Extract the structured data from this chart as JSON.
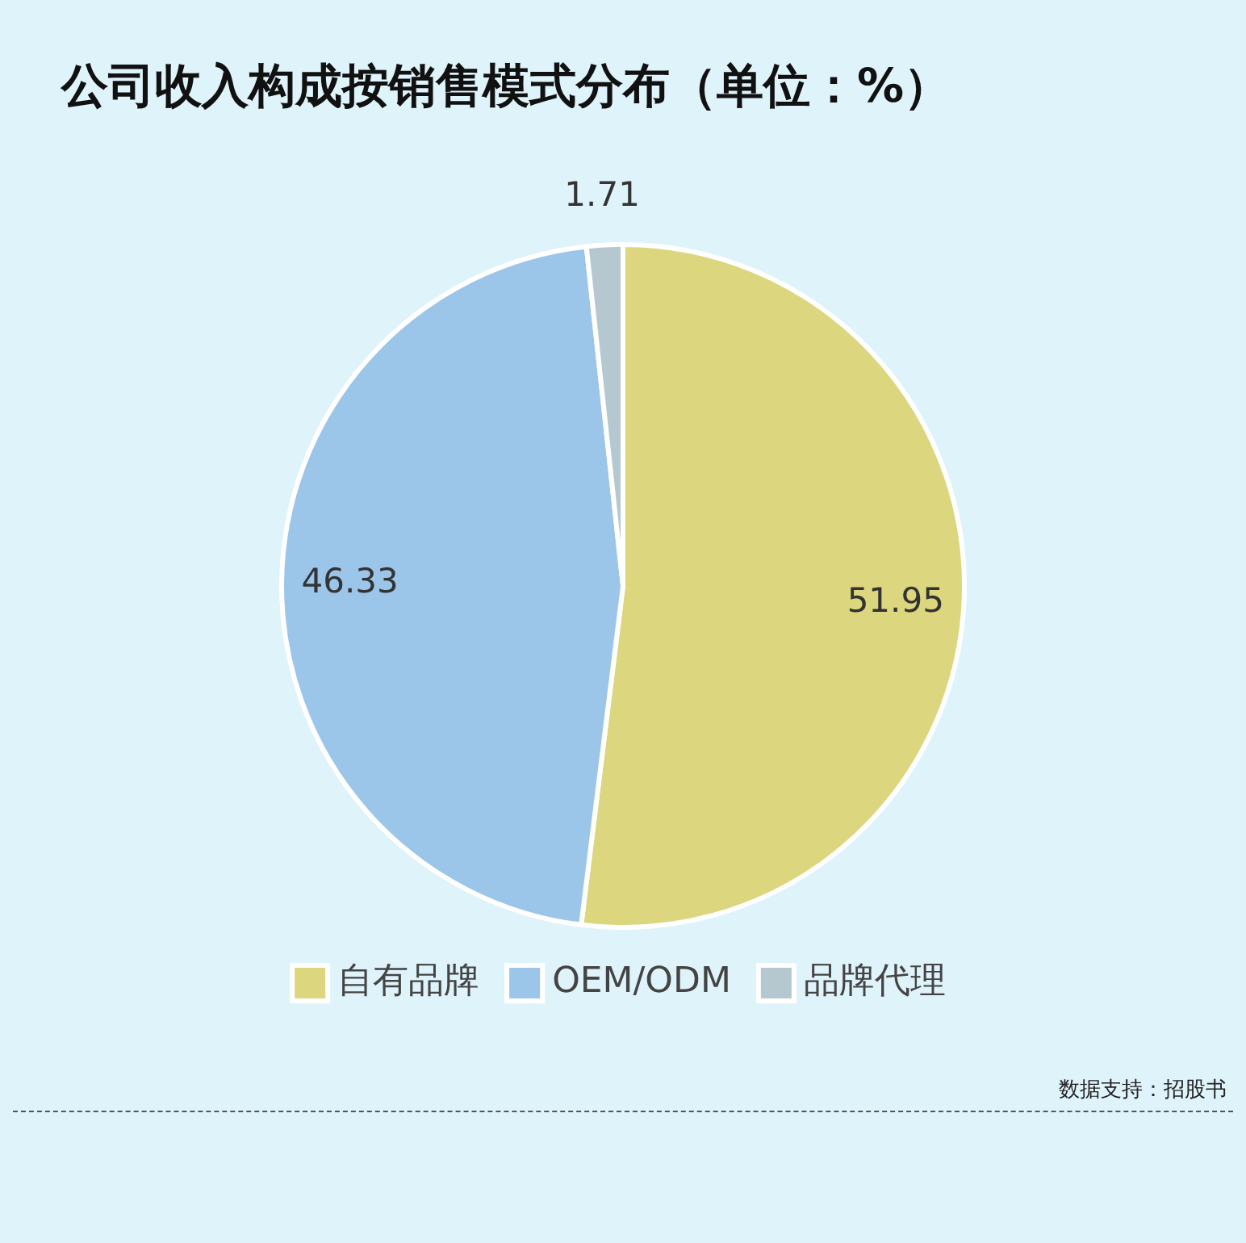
{
  "chart_data": {
    "type": "pie",
    "title": "公司收入构成按销售模式分布（单位：%）",
    "categories": [
      "自有品牌",
      "OEM/ODM",
      "品牌代理"
    ],
    "values": [
      51.95,
      46.33,
      1.71
    ],
    "colors": [
      "#dcd67e",
      "#9cc5ea",
      "#b5c8d0"
    ],
    "data_labels": true,
    "legend": "bottom",
    "annotations": [
      "数据支持：招股书"
    ]
  }
}
